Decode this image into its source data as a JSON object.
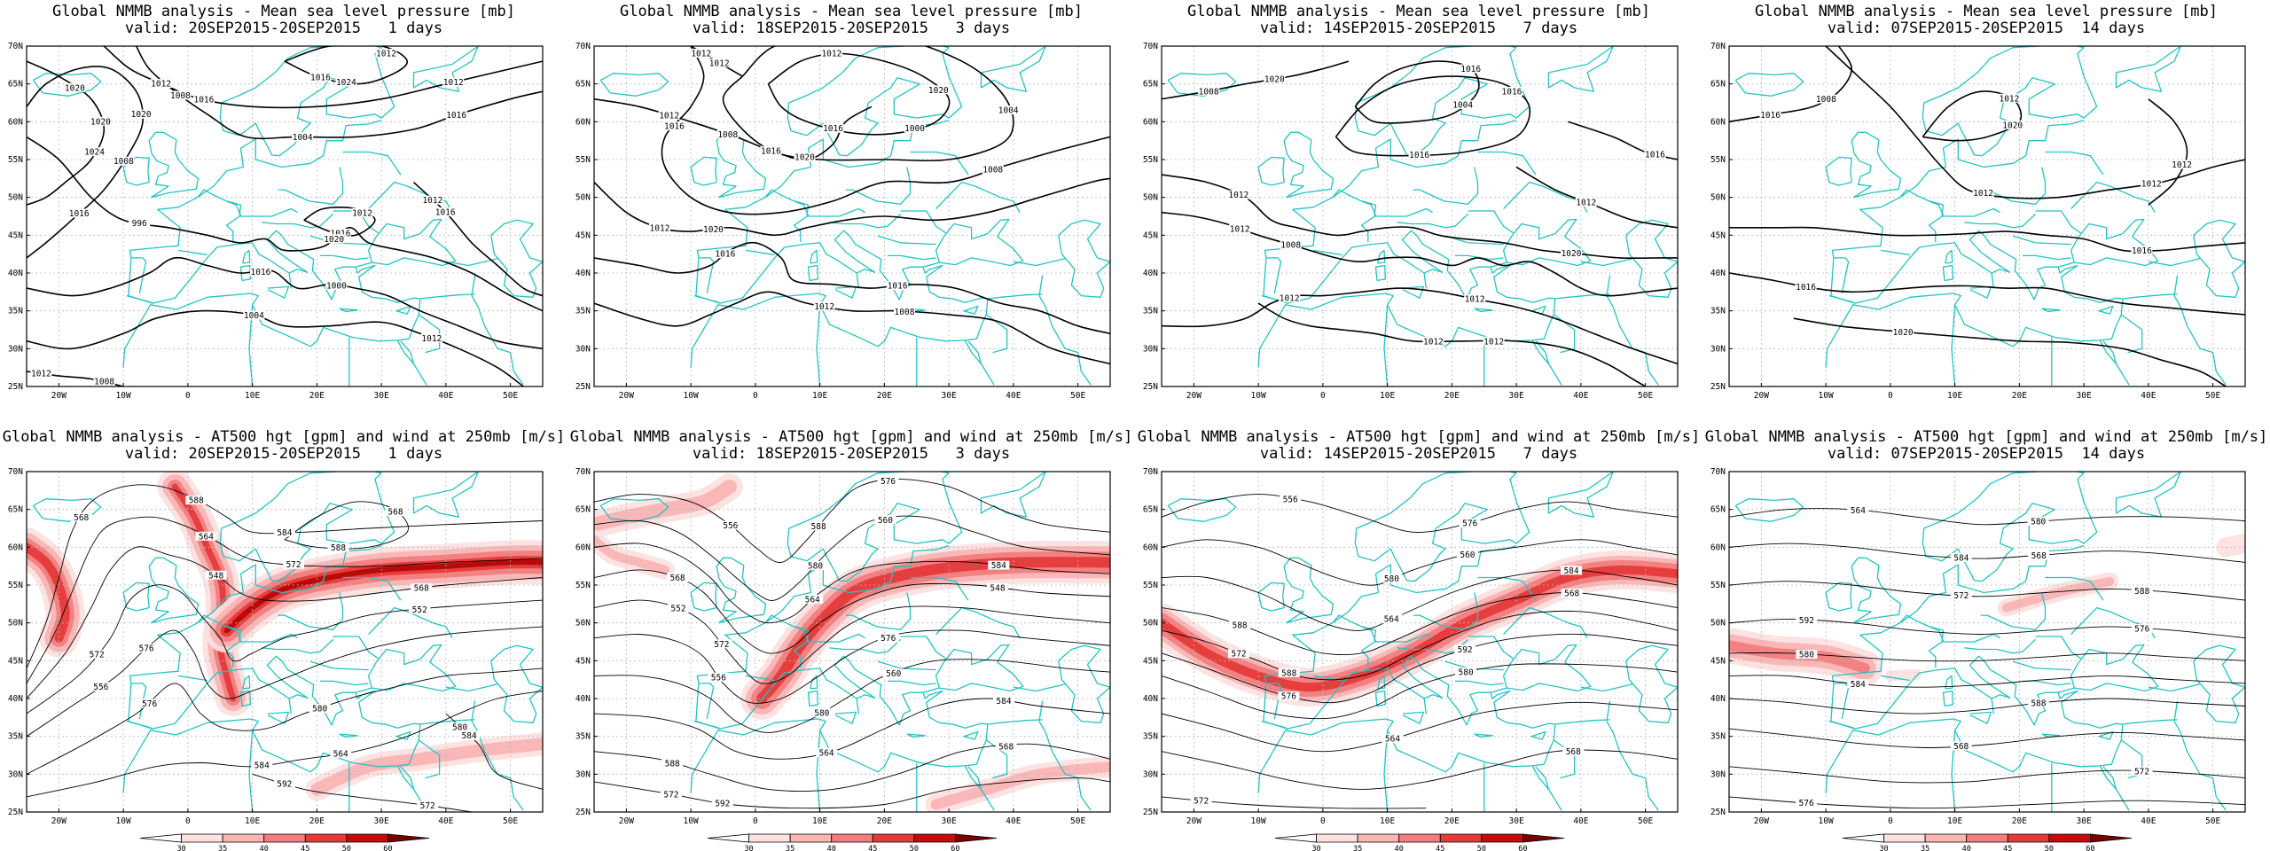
{
  "panels": [
    {
      "id": "mslp-1",
      "title": "Global NMMB analysis - Mean sea level pressure [mb]",
      "valid": "valid: 20SEP2015-20SEP2015   1 days",
      "contour_labels": [
        "1020",
        "1008",
        "1004",
        "1012",
        "1016",
        "996",
        "1000",
        "1004",
        "1008",
        "1012",
        "1016",
        "1024",
        "1020",
        "1016",
        "1012",
        "1024",
        "1020",
        "1016",
        "1012",
        "1012",
        "1016",
        "1012",
        "1020",
        "1016",
        "1008",
        "1016",
        "1012"
      ]
    },
    {
      "id": "mslp-3",
      "title": "Global NMMB analysis - Mean sea level pressure [mb]",
      "valid": "valid: 18SEP2015-20SEP2015   3 days",
      "contour_labels": [
        "1012",
        "1000",
        "1004",
        "1008",
        "1012",
        "1016",
        "1008",
        "1012",
        "1016",
        "1020",
        "1020",
        "1016",
        "1020",
        "1016",
        "1012",
        "1012",
        "1008",
        "1016",
        "1012"
      ]
    },
    {
      "id": "mslp-7",
      "title": "Global NMMB analysis - Mean sea level pressure [mb]",
      "valid": "valid: 14SEP2015-20SEP2015   7 days",
      "contour_labels": [
        "1008",
        "1004",
        "1016",
        "1020",
        "1012",
        "1012",
        "1012",
        "1012",
        "1016",
        "1020",
        "1016",
        "1016",
        "1012",
        "1008",
        "1012",
        "1012"
      ]
    },
    {
      "id": "mslp-14",
      "title": "Global NMMB analysis - Mean sea level pressure [mb]",
      "valid": "valid: 07SEP2015-20SEP2015  14 days",
      "contour_labels": [
        "1016",
        "1020",
        "1012",
        "1016",
        "1016",
        "1020",
        "1012",
        "1008",
        "1012",
        "1012"
      ]
    },
    {
      "id": "z500-1",
      "title": "Global NMMB analysis - AT500 hgt [gpm] and wind at 250mb [m/s]",
      "valid": "valid: 20SEP2015-20SEP2015   1 days",
      "contour_labels": [
        "568",
        "572",
        "548",
        "552",
        "556",
        "576",
        "564",
        "568",
        "572",
        "580",
        "584",
        "564",
        "568",
        "572",
        "576",
        "580",
        "584",
        "588",
        "592",
        "584",
        "588"
      ]
    },
    {
      "id": "z500-3",
      "title": "Global NMMB analysis - AT500 hgt [gpm] and wind at 250mb [m/s]",
      "valid": "valid: 18SEP2015-20SEP2015   3 days",
      "contour_labels": [
        "556",
        "560",
        "564",
        "548",
        "552",
        "556",
        "560",
        "564",
        "568",
        "572",
        "576",
        "580",
        "584",
        "568",
        "572",
        "576",
        "580",
        "584",
        "588",
        "592",
        "588"
      ]
    },
    {
      "id": "z500-7",
      "title": "Global NMMB analysis - AT500 hgt [gpm] and wind at 250mb [m/s]",
      "valid": "valid: 14SEP2015-20SEP2015   7 days",
      "contour_labels": [
        "556",
        "560",
        "564",
        "568",
        "572",
        "576",
        "580",
        "564",
        "568",
        "572",
        "576",
        "580",
        "584",
        "588",
        "588",
        "592"
      ]
    },
    {
      "id": "z500-14",
      "title": "Global NMMB analysis - AT500 hgt [gpm] and wind at 250mb [m/s]",
      "valid": "valid: 07SEP2015-20SEP2015  14 days",
      "contour_labels": [
        "564",
        "568",
        "572",
        "576",
        "580",
        "584",
        "588",
        "568",
        "572",
        "576",
        "580",
        "584",
        "588",
        "592"
      ]
    }
  ],
  "axes": {
    "lat_labels": [
      "70N",
      "65N",
      "60N",
      "55N",
      "50N",
      "45N",
      "40N",
      "35N",
      "30N",
      "25N"
    ],
    "lon_labels": [
      "20W",
      "10W",
      "0",
      "10E",
      "20E",
      "30E",
      "40E",
      "50E"
    ]
  },
  "colorbar": {
    "ticks": [
      "30",
      "35",
      "40",
      "45",
      "50",
      "60"
    ],
    "colors": [
      "#ffffff",
      "#fde0e0",
      "#f9b4b4",
      "#f27d7d",
      "#e53a3a",
      "#c40c0c",
      "#7a0000"
    ]
  },
  "colors": {
    "coast": "#22c4c4",
    "contour": "#000000",
    "grid": "#b8b8b8"
  }
}
